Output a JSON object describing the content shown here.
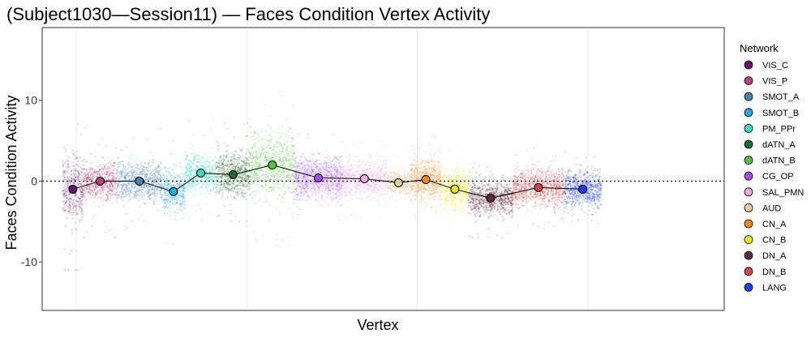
{
  "chart_data": {
    "type": "scatter",
    "title": "(Subject1030—Session11) — Faces Condition Vertex Activity",
    "xlabel": "Vertex",
    "ylabel": "Faces Condition Activity",
    "ylim": [
      -16,
      19
    ],
    "yticks": [
      -10,
      0,
      10
    ],
    "ytick_labels": [
      "-10",
      "0",
      "10"
    ],
    "xlim": [
      0,
      20000
    ],
    "reference_line": {
      "y": 0,
      "style": "dotted"
    },
    "grid": true,
    "legend_title": "Network",
    "legend_position": "right",
    "series": [
      {
        "name": "VIS_C",
        "color": "#6a0f6e",
        "x_range": [
          600,
          1200
        ],
        "mean": -1.0,
        "spread": 3.6,
        "lo": -11,
        "hi": 12.5
      },
      {
        "name": "VIS_P",
        "color": "#b8407c",
        "x_range": [
          1200,
          2200
        ],
        "mean": 0.0,
        "spread": 2.0,
        "lo": -7,
        "hi": 8
      },
      {
        "name": "SMOT_A",
        "color": "#4a86a8",
        "x_range": [
          2200,
          3500
        ],
        "mean": 0.0,
        "spread": 2.2,
        "lo": -6,
        "hi": 7
      },
      {
        "name": "SMOT_B",
        "color": "#2aa7dc",
        "x_range": [
          3500,
          4200
        ],
        "mean": -1.3,
        "spread": 2.2,
        "lo": -8,
        "hi": 6
      },
      {
        "name": "PM_PPr",
        "color": "#3fd9c9",
        "x_range": [
          4200,
          5100
        ],
        "mean": 1.0,
        "spread": 2.0,
        "lo": -5,
        "hi": 9
      },
      {
        "name": "dATN_A",
        "color": "#1e6b2a",
        "x_range": [
          5100,
          6100
        ],
        "mean": 0.8,
        "spread": 2.4,
        "lo": -5,
        "hi": 8
      },
      {
        "name": "dATN_B",
        "color": "#55c240",
        "x_range": [
          6100,
          7400
        ],
        "mean": 2.0,
        "spread": 3.4,
        "lo": -8,
        "hi": 13.5
      },
      {
        "name": "CG_OP",
        "color": "#a64ef0",
        "x_range": [
          7400,
          8800
        ],
        "mean": 0.4,
        "spread": 2.2,
        "lo": -5,
        "hi": 7
      },
      {
        "name": "SAL_PMN",
        "color": "#f4a8e0",
        "x_range": [
          8800,
          10100
        ],
        "mean": 0.3,
        "spread": 1.9,
        "lo": -5,
        "hi": 5
      },
      {
        "name": "AUD",
        "color": "#e2cfa0",
        "x_range": [
          10100,
          10800
        ],
        "mean": -0.2,
        "spread": 1.3,
        "lo": -4,
        "hi": 3.5
      },
      {
        "name": "CN_A",
        "color": "#f08a1e",
        "x_range": [
          10800,
          11700
        ],
        "mean": 0.2,
        "spread": 2.2,
        "lo": -5,
        "hi": 6
      },
      {
        "name": "CN_B",
        "color": "#ecec17",
        "x_range": [
          11700,
          12500
        ],
        "mean": -1.0,
        "spread": 2.2,
        "lo": -6,
        "hi": 5.5
      },
      {
        "name": "DN_A",
        "color": "#5e2a40",
        "x_range": [
          12500,
          13800
        ],
        "mean": -2.1,
        "spread": 1.8,
        "lo": -7,
        "hi": 3
      },
      {
        "name": "DN_B",
        "color": "#d0484e",
        "x_range": [
          13800,
          15300
        ],
        "mean": -0.8,
        "spread": 2.0,
        "lo": -6,
        "hi": 4.5
      },
      {
        "name": "LANG",
        "color": "#1f3ee8",
        "x_range": [
          15300,
          16400
        ],
        "mean": -1.0,
        "spread": 1.9,
        "lo": -6,
        "hi": 4
      }
    ]
  }
}
